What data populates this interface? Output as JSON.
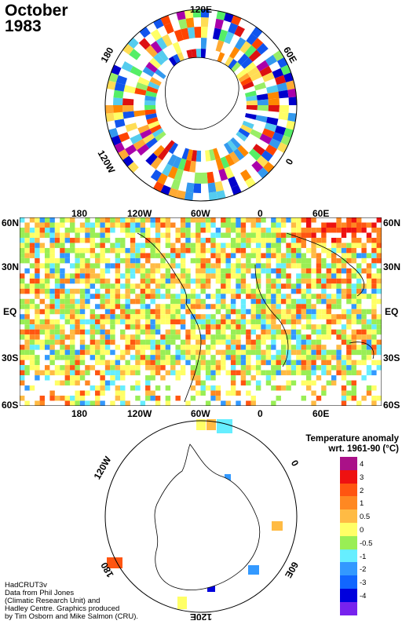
{
  "header": {
    "month": "October",
    "year": "1983"
  },
  "north_polar": {
    "labels": [
      "120E",
      "60E",
      "0",
      "120W",
      "180"
    ],
    "colors": [
      "#dd1111",
      "#ff4400",
      "#ff8800",
      "#ffaa33",
      "#ffdd55",
      "#ffff66",
      "#99ee66",
      "#55ee66",
      "#55ccee",
      "#3399ee",
      "#1155ee",
      "#0000cc",
      "#aa00aa"
    ]
  },
  "map": {
    "top_labels": [
      "180",
      "120W",
      "60W",
      "0",
      "60E"
    ],
    "bottom_labels": [
      "180",
      "120W",
      "60W",
      "0",
      "60E"
    ],
    "lat_labels": [
      "60N",
      "30N",
      "EQ",
      "30S",
      "60S"
    ]
  },
  "south_polar": {
    "labels": [
      "120W",
      "0",
      "60E",
      "120E",
      "180",
      "60W"
    ]
  },
  "legend": {
    "title_line1": "Temperature anomaly",
    "title_line2": "wrt. 1961-90  (°C)",
    "items": [
      {
        "label": "4",
        "color": "#aa1188"
      },
      {
        "label": "3",
        "color": "#ee1111"
      },
      {
        "label": "2",
        "color": "#ff5511"
      },
      {
        "label": "1",
        "color": "#ff8822"
      },
      {
        "label": "0.5",
        "color": "#ffbb44"
      },
      {
        "label": "0",
        "color": "#ffff66"
      },
      {
        "label": "-0.5",
        "color": "#99ee55"
      },
      {
        "label": "-1",
        "color": "#66eeff"
      },
      {
        "label": "-2",
        "color": "#3399ff"
      },
      {
        "label": "-3",
        "color": "#1166ff"
      },
      {
        "label": "-4",
        "color": "#0000dd"
      },
      {
        "label": "",
        "color": "#7722ee"
      }
    ]
  },
  "credits": {
    "line1": "HadCRUT3v",
    "line2": "Data from Phil Jones",
    "line3": "(Climatic Research Unit) and",
    "line4": "Hadley Centre.  Graphics produced",
    "line5": "by Tim Osborn and Mike Salmon (CRU)."
  }
}
